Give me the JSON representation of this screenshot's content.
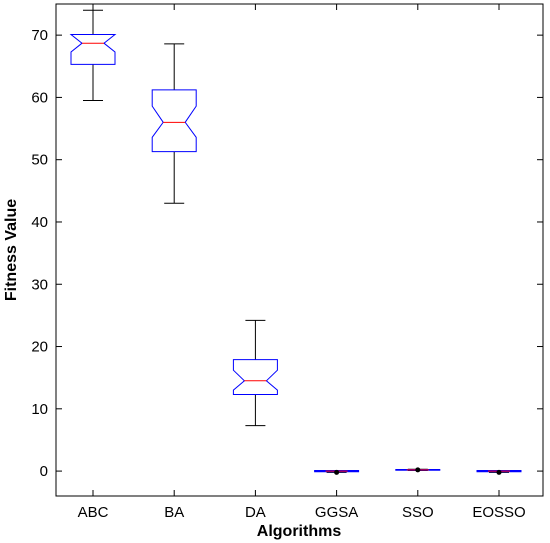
{
  "chart_data": {
    "type": "box",
    "title": "",
    "xlabel": "Algorithms",
    "ylabel": "Fitness Value",
    "ylim": [
      -4,
      75
    ],
    "yticks": [
      0,
      10,
      20,
      30,
      40,
      50,
      60,
      70
    ],
    "grid": false,
    "notched": true,
    "categories": [
      "ABC",
      "BA",
      "DA",
      "GGSA",
      "SSO",
      "EOSSO"
    ],
    "boxes": [
      {
        "name": "ABC",
        "whisker_low": 59.5,
        "q1": 65.3,
        "median": 68.7,
        "q3": 70.1,
        "whisker_high": 74.0,
        "notch_low": 67.3,
        "notch_high": 70.1
      },
      {
        "name": "BA",
        "whisker_low": 43.0,
        "q1": 51.3,
        "median": 56.0,
        "q3": 61.2,
        "whisker_high": 68.6,
        "notch_low": 53.6,
        "notch_high": 58.6
      },
      {
        "name": "DA",
        "whisker_low": 7.3,
        "q1": 12.3,
        "median": 14.5,
        "q3": 17.9,
        "whisker_high": 24.2,
        "notch_low": 13.0,
        "notch_high": 16.2
      },
      {
        "name": "GGSA",
        "whisker_low": -0.2,
        "q1": -0.1,
        "median": 0.0,
        "q3": 0.1,
        "whisker_high": 0.1,
        "notch_low": -0.05,
        "notch_high": 0.05,
        "outliers": [
          -0.2
        ]
      },
      {
        "name": "SSO",
        "whisker_low": 0.1,
        "q1": 0.15,
        "median": 0.2,
        "q3": 0.25,
        "whisker_high": 0.3,
        "notch_low": 0.18,
        "notch_high": 0.22,
        "outliers": [
          0.2
        ]
      },
      {
        "name": "EOSSO",
        "whisker_low": -0.2,
        "q1": -0.1,
        "median": 0.0,
        "q3": 0.1,
        "whisker_high": 0.1,
        "notch_low": -0.05,
        "notch_high": 0.05,
        "outliers": [
          -0.2
        ]
      }
    ],
    "colors": {
      "box": "#0000ff",
      "median": "#ff0000",
      "whisker": "#000000",
      "outlier": "#000000",
      "axis": "#000000"
    }
  }
}
